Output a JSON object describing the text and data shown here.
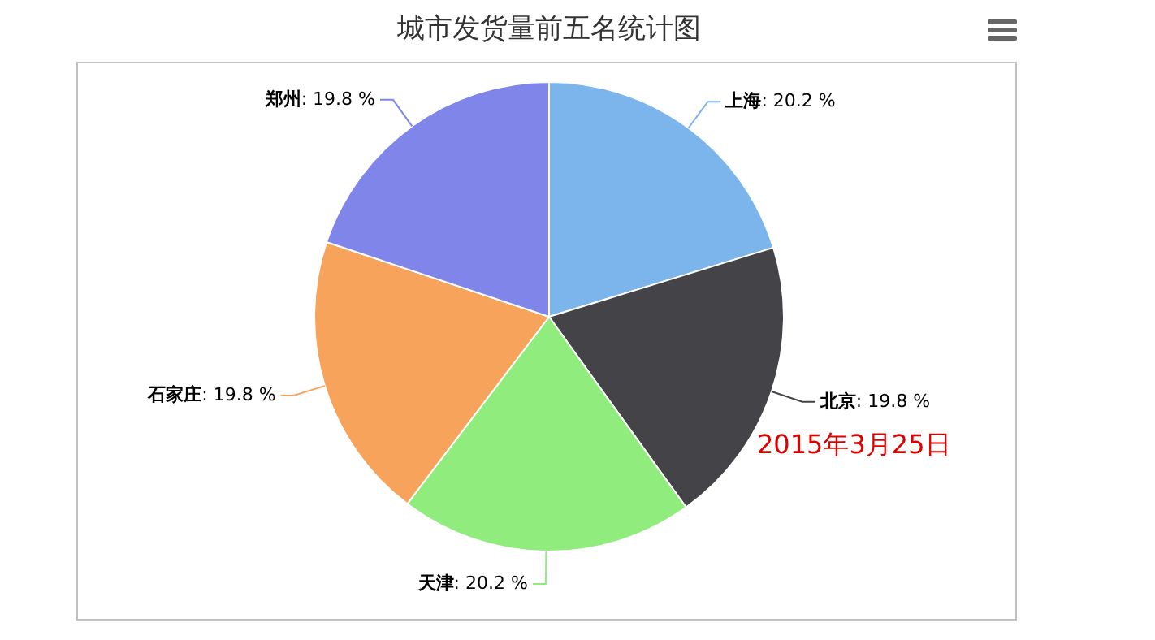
{
  "chart_data": {
    "type": "pie",
    "title": "城市发货量前五名统计图",
    "categories": [
      "上海",
      "北京",
      "天津",
      "石家庄",
      "郑州"
    ],
    "values": [
      20.2,
      19.8,
      20.2,
      19.8,
      19.8
    ],
    "colors": [
      "#7cb5ec",
      "#434348",
      "#90ed7d",
      "#f7a35c",
      "#8085e9"
    ],
    "value_labels": [
      ": 20.2 %",
      ": 19.8 %",
      ": 20.2 %",
      ": 19.8 %",
      ": 19.8 %"
    ],
    "legend": false,
    "annotations": [
      "2015年3月25日"
    ]
  }
}
